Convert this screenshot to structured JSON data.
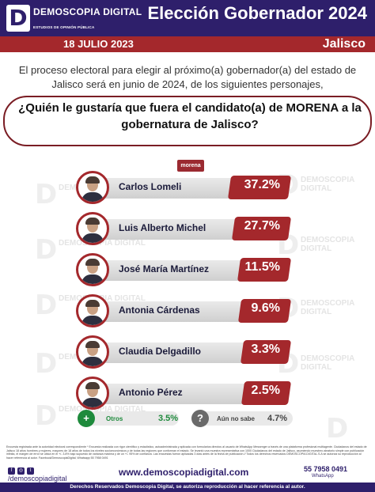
{
  "header": {
    "logo_letter": "D",
    "brand": "DEMOSCOPIA DIGITAL",
    "brand_sub": "ESTUDIOS DE OPINIÓN PÚBLICA",
    "title": "Elección Gobernador 2024",
    "date": "18 JULIO 2023",
    "state": "Jalisco"
  },
  "intro": "El proceso electoral para elegir al próximo(a) gobernador(a) del estado de Jalisco será en junio de 2024, de los siguientes personajes,",
  "question": "¿Quién le gustaría que fuera el candidato(a) de MORENA a la gobernatura de Jalisco?",
  "party_badge": "morena",
  "watermark": {
    "brand": "DEMOSCOPIA DIGITAL",
    "sub": "ESTUDIOS DE OPINIÓN PÚBLICA"
  },
  "chart_data": {
    "type": "bar",
    "categories": [
      "Carlos Lomeli",
      "Luis Alberto Michel",
      "José María Martínez",
      "Antonia Cárdenas",
      "Claudia Delgadillo",
      "Antonio Pérez"
    ],
    "values": [
      37.2,
      27.7,
      11.5,
      9.6,
      3.3,
      2.5
    ],
    "labels": [
      "37.2%",
      "27.7%",
      "11.5%",
      "9.6%",
      "3.3%",
      "2.5%"
    ],
    "title": "",
    "xlabel": "",
    "ylabel": "",
    "others": [
      {
        "label": "Otros",
        "value": 3.5,
        "display": "3.5%"
      },
      {
        "label": "Aún no sabe",
        "value": 4.7,
        "display": "4.7%"
      }
    ],
    "colors": {
      "bar": "#a4282c",
      "track": "#d8d8d8",
      "others": "#1e8a3c",
      "undecided": "#6a6a6a"
    }
  },
  "fine_print": "Encuesta registrada ante la autoridad electoral correspondiente * Encuesta realizada con rigor científico y estadístico, autoadministrada y aplicada con formularios directos al usuario de WhatsApp Messenger a través de una plataforma profesional multiagente. Ciudadanos del estado de Jalisco 18 años hombres y mujeres, mayores de 18 años de todos los niveles socioeconómicos y de todas las regiones que conforman el estado. Se levantó una muestra representativa con 1000 Ciudadanos del estado de Jalisco, asumiendo muestreo aleatorio simple con publicación infinita, el margen de error se ubica en el +/- 3.8% bajo supuesto de varianza máxima y de un +/- 95% de confianza. Las encuestas fueron aplicadas 3 días antes de la fecha de publicación // Todos los derechos reservados DEMOSCOPIA DIGITAL.S.A se autoriza su reproducción al hacer referencia al autor. Facebook/DemoscopiaDigital, Whatsapp 55 7958 0491",
  "social": "/demoscopiadigital",
  "website": "www.demoscopiadigital.com",
  "phone": "55 7958 0491",
  "whatsapp": "WhatsApp",
  "footer": "Derechos Reservados Demoscopia Digital, se autoriza reproducción al hacer referencia al autor."
}
